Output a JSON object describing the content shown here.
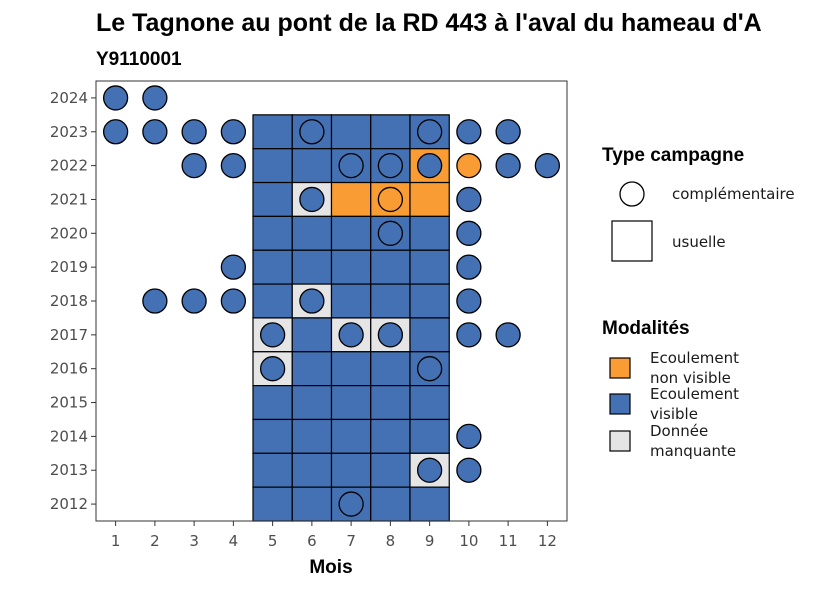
{
  "chart_data": {
    "type": "heatmap",
    "title": "Le Tagnone au pont de la RD 443 à l'aval du hameau d'A",
    "subtitle": "Y9110001",
    "xlabel": "Mois",
    "ylabel": "",
    "x_ticks": [
      1,
      2,
      3,
      4,
      5,
      6,
      7,
      8,
      9,
      10,
      11,
      12
    ],
    "y_ticks": [
      2012,
      2013,
      2014,
      2015,
      2016,
      2017,
      2018,
      2019,
      2020,
      2021,
      2022,
      2023,
      2024
    ],
    "xlim": [
      0.5,
      12.5
    ],
    "ylim": [
      2011.5,
      2024.5
    ],
    "colors": {
      "Ecoulement non visible": "#f89c33",
      "Ecoulement visible": "#4471b4",
      "Donnée manquante": "#e5e5e5"
    },
    "legend": {
      "type_title": "Type campagne",
      "type_items": [
        {
          "shape": "circle",
          "label": "complémentaire"
        },
        {
          "shape": "square",
          "label": "usuelle"
        }
      ],
      "mod_title": "Modalités",
      "mod_items": [
        {
          "key": "Ecoulement non visible",
          "lines": [
            "Ecoulement",
            "non visible"
          ]
        },
        {
          "key": "Ecoulement visible",
          "lines": [
            "Ecoulement",
            "visible"
          ]
        },
        {
          "key": "Donnée manquante",
          "lines": [
            "Donnée",
            "manquante"
          ]
        }
      ]
    },
    "usuelle": [
      {
        "year": 2023,
        "month": 5,
        "modalite": "Ecoulement visible"
      },
      {
        "year": 2023,
        "month": 6,
        "modalite": "Ecoulement visible"
      },
      {
        "year": 2023,
        "month": 7,
        "modalite": "Ecoulement visible"
      },
      {
        "year": 2023,
        "month": 8,
        "modalite": "Ecoulement visible"
      },
      {
        "year": 2023,
        "month": 9,
        "modalite": "Ecoulement visible"
      },
      {
        "year": 2022,
        "month": 5,
        "modalite": "Ecoulement visible"
      },
      {
        "year": 2022,
        "month": 6,
        "modalite": "Ecoulement visible"
      },
      {
        "year": 2022,
        "month": 7,
        "modalite": "Ecoulement visible"
      },
      {
        "year": 2022,
        "month": 8,
        "modalite": "Ecoulement visible"
      },
      {
        "year": 2022,
        "month": 9,
        "modalite": "Ecoulement non visible"
      },
      {
        "year": 2021,
        "month": 5,
        "modalite": "Ecoulement visible"
      },
      {
        "year": 2021,
        "month": 6,
        "modalite": "Donnée manquante"
      },
      {
        "year": 2021,
        "month": 7,
        "modalite": "Ecoulement non visible"
      },
      {
        "year": 2021,
        "month": 8,
        "modalite": "Ecoulement non visible"
      },
      {
        "year": 2021,
        "month": 9,
        "modalite": "Ecoulement non visible"
      },
      {
        "year": 2020,
        "month": 5,
        "modalite": "Ecoulement visible"
      },
      {
        "year": 2020,
        "month": 6,
        "modalite": "Ecoulement visible"
      },
      {
        "year": 2020,
        "month": 7,
        "modalite": "Ecoulement visible"
      },
      {
        "year": 2020,
        "month": 8,
        "modalite": "Ecoulement visible"
      },
      {
        "year": 2020,
        "month": 9,
        "modalite": "Ecoulement visible"
      },
      {
        "year": 2019,
        "month": 5,
        "modalite": "Ecoulement visible"
      },
      {
        "year": 2019,
        "month": 6,
        "modalite": "Ecoulement visible"
      },
      {
        "year": 2019,
        "month": 7,
        "modalite": "Ecoulement visible"
      },
      {
        "year": 2019,
        "month": 8,
        "modalite": "Ecoulement visible"
      },
      {
        "year": 2019,
        "month": 9,
        "modalite": "Ecoulement visible"
      },
      {
        "year": 2018,
        "month": 5,
        "modalite": "Ecoulement visible"
      },
      {
        "year": 2018,
        "month": 6,
        "modalite": "Donnée manquante"
      },
      {
        "year": 2018,
        "month": 7,
        "modalite": "Ecoulement visible"
      },
      {
        "year": 2018,
        "month": 8,
        "modalite": "Ecoulement visible"
      },
      {
        "year": 2018,
        "month": 9,
        "modalite": "Ecoulement visible"
      },
      {
        "year": 2017,
        "month": 5,
        "modalite": "Donnée manquante"
      },
      {
        "year": 2017,
        "month": 6,
        "modalite": "Ecoulement visible"
      },
      {
        "year": 2017,
        "month": 7,
        "modalite": "Donnée manquante"
      },
      {
        "year": 2017,
        "month": 8,
        "modalite": "Donnée manquante"
      },
      {
        "year": 2017,
        "month": 9,
        "modalite": "Ecoulement visible"
      },
      {
        "year": 2016,
        "month": 5,
        "modalite": "Donnée manquante"
      },
      {
        "year": 2016,
        "month": 6,
        "modalite": "Ecoulement visible"
      },
      {
        "year": 2016,
        "month": 7,
        "modalite": "Ecoulement visible"
      },
      {
        "year": 2016,
        "month": 8,
        "modalite": "Ecoulement visible"
      },
      {
        "year": 2016,
        "month": 9,
        "modalite": "Ecoulement visible"
      },
      {
        "year": 2015,
        "month": 5,
        "modalite": "Ecoulement visible"
      },
      {
        "year": 2015,
        "month": 6,
        "modalite": "Ecoulement visible"
      },
      {
        "year": 2015,
        "month": 7,
        "modalite": "Ecoulement visible"
      },
      {
        "year": 2015,
        "month": 8,
        "modalite": "Ecoulement visible"
      },
      {
        "year": 2015,
        "month": 9,
        "modalite": "Ecoulement visible"
      },
      {
        "year": 2014,
        "month": 5,
        "modalite": "Ecoulement visible"
      },
      {
        "year": 2014,
        "month": 6,
        "modalite": "Ecoulement visible"
      },
      {
        "year": 2014,
        "month": 7,
        "modalite": "Ecoulement visible"
      },
      {
        "year": 2014,
        "month": 8,
        "modalite": "Ecoulement visible"
      },
      {
        "year": 2014,
        "month": 9,
        "modalite": "Ecoulement visible"
      },
      {
        "year": 2013,
        "month": 5,
        "modalite": "Ecoulement visible"
      },
      {
        "year": 2013,
        "month": 6,
        "modalite": "Ecoulement visible"
      },
      {
        "year": 2013,
        "month": 7,
        "modalite": "Ecoulement visible"
      },
      {
        "year": 2013,
        "month": 8,
        "modalite": "Ecoulement visible"
      },
      {
        "year": 2013,
        "month": 9,
        "modalite": "Donnée manquante"
      },
      {
        "year": 2012,
        "month": 5,
        "modalite": "Ecoulement visible"
      },
      {
        "year": 2012,
        "month": 6,
        "modalite": "Ecoulement visible"
      },
      {
        "year": 2012,
        "month": 7,
        "modalite": "Ecoulement visible"
      },
      {
        "year": 2012,
        "month": 8,
        "modalite": "Ecoulement visible"
      },
      {
        "year": 2012,
        "month": 9,
        "modalite": "Ecoulement visible"
      }
    ],
    "complementaire": [
      {
        "year": 2024,
        "month": 1,
        "modalite": "Ecoulement visible"
      },
      {
        "year": 2024,
        "month": 2,
        "modalite": "Ecoulement visible"
      },
      {
        "year": 2023,
        "month": 1,
        "modalite": "Ecoulement visible"
      },
      {
        "year": 2023,
        "month": 2,
        "modalite": "Ecoulement visible"
      },
      {
        "year": 2023,
        "month": 3,
        "modalite": "Ecoulement visible"
      },
      {
        "year": 2023,
        "month": 4,
        "modalite": "Ecoulement visible"
      },
      {
        "year": 2023,
        "month": 6,
        "modalite": "Ecoulement visible"
      },
      {
        "year": 2023,
        "month": 9,
        "modalite": "Ecoulement visible"
      },
      {
        "year": 2023,
        "month": 10,
        "modalite": "Ecoulement visible"
      },
      {
        "year": 2023,
        "month": 11,
        "modalite": "Ecoulement visible"
      },
      {
        "year": 2022,
        "month": 3,
        "modalite": "Ecoulement visible"
      },
      {
        "year": 2022,
        "month": 4,
        "modalite": "Ecoulement visible"
      },
      {
        "year": 2022,
        "month": 7,
        "modalite": "Ecoulement visible"
      },
      {
        "year": 2022,
        "month": 8,
        "modalite": "Ecoulement visible"
      },
      {
        "year": 2022,
        "month": 9,
        "modalite": "Ecoulement visible"
      },
      {
        "year": 2022,
        "month": 10,
        "modalite": "Ecoulement non visible"
      },
      {
        "year": 2022,
        "month": 11,
        "modalite": "Ecoulement visible"
      },
      {
        "year": 2022,
        "month": 12,
        "modalite": "Ecoulement visible"
      },
      {
        "year": 2021,
        "month": 6,
        "modalite": "Ecoulement visible"
      },
      {
        "year": 2021,
        "month": 8,
        "modalite": "Ecoulement non visible"
      },
      {
        "year": 2021,
        "month": 10,
        "modalite": "Ecoulement visible"
      },
      {
        "year": 2020,
        "month": 8,
        "modalite": "Ecoulement visible"
      },
      {
        "year": 2020,
        "month": 10,
        "modalite": "Ecoulement visible"
      },
      {
        "year": 2019,
        "month": 4,
        "modalite": "Ecoulement visible"
      },
      {
        "year": 2019,
        "month": 10,
        "modalite": "Ecoulement visible"
      },
      {
        "year": 2018,
        "month": 2,
        "modalite": "Ecoulement visible"
      },
      {
        "year": 2018,
        "month": 3,
        "modalite": "Ecoulement visible"
      },
      {
        "year": 2018,
        "month": 4,
        "modalite": "Ecoulement visible"
      },
      {
        "year": 2018,
        "month": 6,
        "modalite": "Ecoulement visible"
      },
      {
        "year": 2018,
        "month": 10,
        "modalite": "Ecoulement visible"
      },
      {
        "year": 2017,
        "month": 5,
        "modalite": "Ecoulement visible"
      },
      {
        "year": 2017,
        "month": 7,
        "modalite": "Ecoulement visible"
      },
      {
        "year": 2017,
        "month": 8,
        "modalite": "Ecoulement visible"
      },
      {
        "year": 2017,
        "month": 10,
        "modalite": "Ecoulement visible"
      },
      {
        "year": 2017,
        "month": 11,
        "modalite": "Ecoulement visible"
      },
      {
        "year": 2016,
        "month": 5,
        "modalite": "Ecoulement visible"
      },
      {
        "year": 2016,
        "month": 9,
        "modalite": "Ecoulement visible"
      },
      {
        "year": 2014,
        "month": 10,
        "modalite": "Ecoulement visible"
      },
      {
        "year": 2013,
        "month": 9,
        "modalite": "Ecoulement visible"
      },
      {
        "year": 2013,
        "month": 10,
        "modalite": "Ecoulement visible"
      },
      {
        "year": 2012,
        "month": 7,
        "modalite": "Ecoulement visible"
      }
    ]
  }
}
